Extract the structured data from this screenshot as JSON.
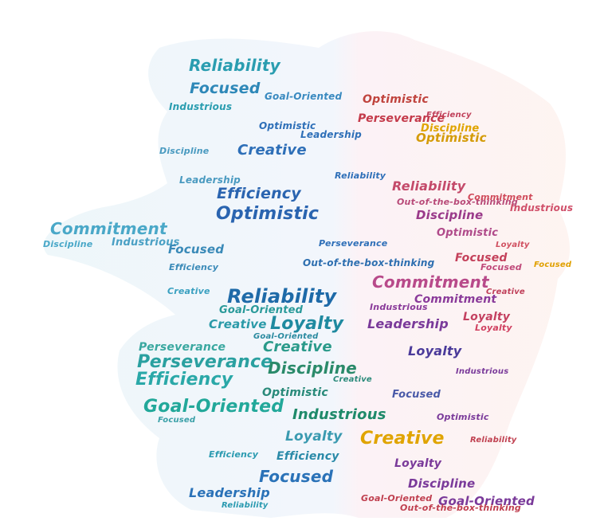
{
  "cloud": {
    "colors": {
      "teal": "#2aa0a0",
      "blue": "#2a64b0",
      "purple": "#7a3a9a",
      "magenta": "#b84a8a",
      "red": "#c4405a",
      "gold": "#e0a400",
      "green": "#2a8a6a"
    },
    "words": [
      {
        "text": "Reliability"
      },
      {
        "text": "Focused"
      },
      {
        "text": "Industrious"
      },
      {
        "text": "Optimistic"
      },
      {
        "text": "Optimistic"
      },
      {
        "text": "Goal-Oriented"
      },
      {
        "text": "Perseverance"
      },
      {
        "text": "Discipline"
      },
      {
        "text": "Optimistic"
      },
      {
        "text": "Creative"
      },
      {
        "text": "Efficiency"
      },
      {
        "text": "Optimistic"
      },
      {
        "text": "Reliability"
      },
      {
        "text": "Out-of-the-box-thinking"
      },
      {
        "text": "Discipline"
      },
      {
        "text": "Commitment"
      },
      {
        "text": "Industrious"
      },
      {
        "text": "Focused"
      },
      {
        "text": "Optimistic"
      },
      {
        "text": "Focused"
      },
      {
        "text": "Out-of-the-box-thinking"
      },
      {
        "text": "Reliability"
      },
      {
        "text": "Commitment"
      },
      {
        "text": "Commitment"
      },
      {
        "text": "Industrious"
      },
      {
        "text": "Goal-Oriented"
      },
      {
        "text": "Loyalty"
      },
      {
        "text": "Creative"
      },
      {
        "text": "Leadership"
      },
      {
        "text": "Loyalty"
      },
      {
        "text": "Creative"
      },
      {
        "text": "Loyalty"
      },
      {
        "text": "Perseverance"
      },
      {
        "text": "Perseverance"
      },
      {
        "text": "Discipline"
      },
      {
        "text": "Efficiency"
      },
      {
        "text": "Optimistic"
      },
      {
        "text": "Focused"
      },
      {
        "text": "Goal-Oriented"
      },
      {
        "text": "Industrious"
      },
      {
        "text": "Creative"
      },
      {
        "text": "Loyalty"
      },
      {
        "text": "Efficiency"
      },
      {
        "text": "Focused"
      },
      {
        "text": "Loyalty"
      },
      {
        "text": "Discipline"
      },
      {
        "text": "Goal-Oriented"
      },
      {
        "text": "Leadership"
      },
      {
        "text": "Goal-Oriented"
      },
      {
        "text": "Out-of-the-box-thinking"
      },
      {
        "text": "Reliability"
      },
      {
        "text": "Loyalty"
      },
      {
        "text": "Commitment"
      },
      {
        "text": "Industrious"
      },
      {
        "text": "Focused"
      },
      {
        "text": "Loyalty"
      },
      {
        "text": "Focused"
      },
      {
        "text": "Discipline"
      },
      {
        "text": "Discipline"
      },
      {
        "text": "Leadership"
      },
      {
        "text": "Creative"
      },
      {
        "text": "Efficiency"
      },
      {
        "text": "Leadership"
      },
      {
        "text": "Reliability"
      },
      {
        "text": "Perseverance"
      },
      {
        "text": "Efficiency"
      },
      {
        "text": "Focused"
      },
      {
        "text": "Industrious"
      },
      {
        "text": "Reliability"
      },
      {
        "text": "Efficiency"
      },
      {
        "text": "Goal-Oriented"
      },
      {
        "text": "Creative"
      },
      {
        "text": "Optimistic"
      },
      {
        "text": "Creative"
      }
    ]
  }
}
